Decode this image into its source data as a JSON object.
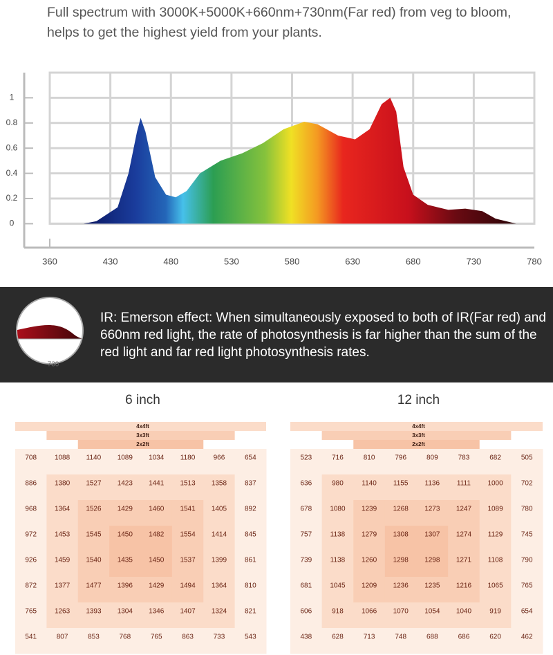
{
  "header": {
    "text": "Full spectrum with 3000K+5000K+660nm+730nm(Far red) from veg to bloom, helps to get the highest yield from your plants."
  },
  "chart_data": {
    "type": "area",
    "x": [
      399,
      414,
      436,
      445,
      452,
      455,
      459,
      467,
      476,
      484,
      493,
      504,
      521,
      539,
      556,
      573,
      590,
      601,
      618,
      632,
      644,
      654,
      661,
      666,
      672,
      680,
      692,
      709,
      723,
      737,
      748,
      765
    ],
    "values": [
      0,
      0.02,
      0.13,
      0.4,
      0.73,
      0.84,
      0.73,
      0.37,
      0.23,
      0.21,
      0.26,
      0.4,
      0.5,
      0.56,
      0.64,
      0.75,
      0.81,
      0.79,
      0.7,
      0.67,
      0.75,
      0.95,
      1.0,
      0.89,
      0.45,
      0.23,
      0.15,
      0.11,
      0.12,
      0.1,
      0.04,
      0
    ],
    "xticks": [
      360,
      430,
      480,
      530,
      580,
      630,
      680,
      730,
      780
    ],
    "ylim": [
      -0.19,
      1.2
    ],
    "yticks": [
      0,
      0.2,
      0.4,
      0.6,
      0.8,
      1
    ],
    "grid": true
  },
  "banner": {
    "icon_label": "730",
    "text": "IR: Emerson effect: When simultaneously exposed to both of IR(Far red) and 660nm red light, the rate of photosynthesis is far higher than the sum of the red light and far red light photosynthesis rates."
  },
  "tables": [
    {
      "title": "6 inch",
      "zones": [
        "4x4ft",
        "3x3ft",
        "2x2ft"
      ],
      "rows": [
        [
          708,
          1088,
          1140,
          1089,
          1034,
          1180,
          966,
          654
        ],
        [
          886,
          1380,
          1527,
          1423,
          1441,
          1513,
          1358,
          837
        ],
        [
          968,
          1364,
          1526,
          1429,
          1460,
          1541,
          1405,
          892
        ],
        [
          972,
          1453,
          1545,
          1450,
          1482,
          1554,
          1414,
          845
        ],
        [
          926,
          1459,
          1540,
          1435,
          1450,
          1537,
          1399,
          861
        ],
        [
          872,
          1377,
          1477,
          1396,
          1429,
          1494,
          1364,
          810
        ],
        [
          765,
          1263,
          1393,
          1304,
          1346,
          1407,
          1324,
          821
        ],
        [
          541,
          807,
          853,
          768,
          765,
          863,
          733,
          543
        ]
      ]
    },
    {
      "title": "12 inch",
      "zones": [
        "4x4ft",
        "3x3ft",
        "2x2ft"
      ],
      "rows": [
        [
          523,
          716,
          810,
          796,
          809,
          783,
          682,
          505
        ],
        [
          636,
          980,
          1140,
          1155,
          1136,
          1111,
          1000,
          702
        ],
        [
          678,
          1080,
          1239,
          1268,
          1273,
          1247,
          1089,
          780
        ],
        [
          757,
          1138,
          1279,
          1308,
          1307,
          1274,
          1129,
          745
        ],
        [
          739,
          1138,
          1260,
          1298,
          1298,
          1271,
          1108,
          790
        ],
        [
          681,
          1045,
          1209,
          1236,
          1235,
          1216,
          1065,
          765
        ],
        [
          606,
          918,
          1066,
          1070,
          1054,
          1040,
          919,
          654
        ],
        [
          438,
          628,
          713,
          748,
          688,
          686,
          620,
          462
        ]
      ]
    }
  ]
}
